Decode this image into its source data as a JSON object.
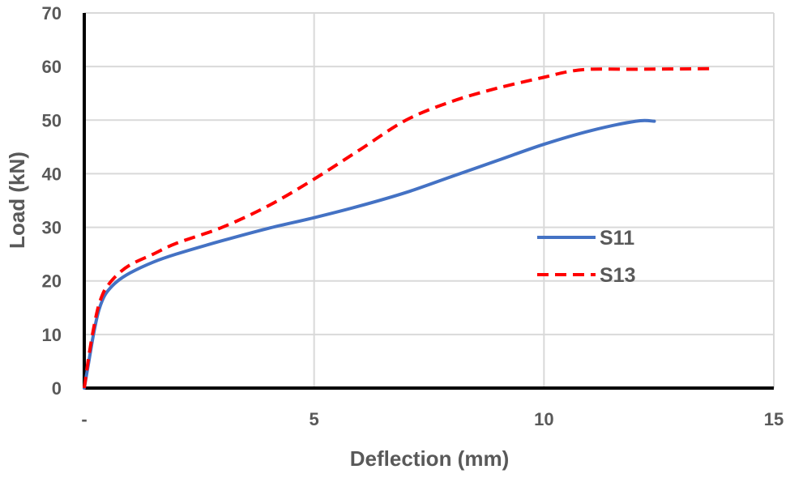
{
  "chart_data": {
    "type": "line",
    "title": "",
    "xlabel": "Deflection (mm)",
    "ylabel": "Load (kN)",
    "xlim": [
      0,
      15
    ],
    "ylim": [
      0,
      70
    ],
    "x_ticks": [
      0,
      5,
      10,
      15
    ],
    "x_tick_labels": [
      "-",
      "5",
      "10",
      "15"
    ],
    "y_ticks": [
      0,
      10,
      20,
      30,
      40,
      50,
      60,
      70
    ],
    "y_tick_labels": [
      "0",
      "10",
      "20",
      "30",
      "40",
      "50",
      "60",
      "70"
    ],
    "grid": true,
    "legend_position": "right-middle",
    "series": [
      {
        "name": "S11",
        "color": "#4472C4",
        "dash": "solid",
        "x": [
          0,
          0.1,
          0.2,
          0.3,
          0.4,
          0.5,
          0.7,
          1.0,
          1.5,
          2.0,
          3.0,
          4.0,
          5.0,
          6.0,
          7.0,
          8.0,
          9.0,
          10.0,
          11.0,
          12.0,
          12.4
        ],
        "y": [
          0,
          5,
          10,
          14,
          16.5,
          18,
          19.8,
          21.5,
          23.5,
          25,
          27.5,
          29.8,
          31.8,
          34,
          36.5,
          39.5,
          42.5,
          45.5,
          48,
          49.8,
          49.8
        ]
      },
      {
        "name": "S13",
        "color": "#FF0000",
        "dash": "dashed",
        "x": [
          0,
          0.1,
          0.2,
          0.3,
          0.4,
          0.5,
          0.7,
          1.0,
          1.5,
          2.0,
          3.0,
          4.0,
          5.0,
          6.0,
          7.0,
          8.0,
          9.0,
          10.0,
          10.5,
          11.0,
          12.0,
          13.6
        ],
        "y": [
          0,
          6,
          11,
          15,
          17.5,
          19,
          21,
          23,
          25,
          27,
          30,
          34,
          39,
          44.5,
          50,
          53.5,
          56,
          58,
          59,
          59.5,
          59.5,
          59.6
        ]
      }
    ]
  }
}
